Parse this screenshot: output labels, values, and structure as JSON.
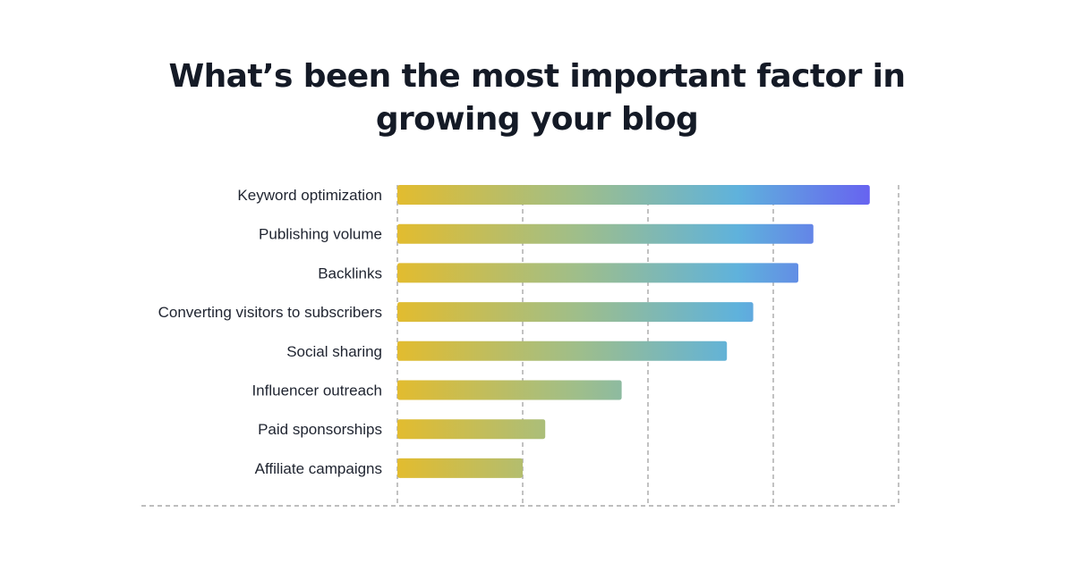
{
  "chart_data": {
    "type": "bar",
    "orientation": "horizontal",
    "title": "What’s been the most important factor in growing your blog",
    "categories": [
      "Keyword optimization",
      "Publishing volume",
      "Backlinks",
      "Converting visitors to subscribers",
      "Social sharing",
      "Influencer outreach",
      "Paid sponsorships",
      "Affiliate campaigns"
    ],
    "values": [
      37.7,
      33.2,
      32.0,
      28.4,
      26.3,
      17.9,
      11.8,
      10.0
    ],
    "xlim": [
      0,
      40
    ],
    "gridlines_x": [
      0,
      10,
      20,
      30,
      40
    ],
    "grid": true,
    "show_x_tick_labels": false,
    "colors": {
      "gradient_start": "#e2bc2f",
      "gradient_mid_1": "#9fbe8a",
      "gradient_mid_2": "#5fb2dc",
      "gradient_end": "#6763f0",
      "grid": "#a9a9a9",
      "label": "#1f2430",
      "title": "#141a26"
    }
  }
}
